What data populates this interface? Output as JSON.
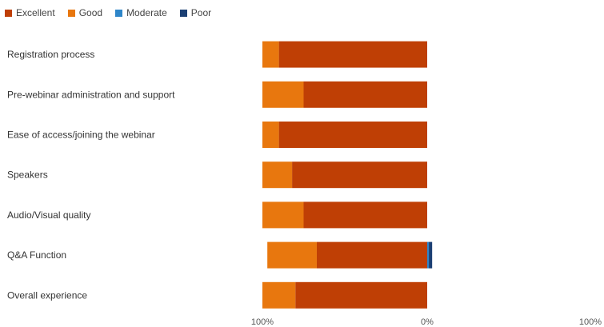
{
  "legend": [
    {
      "label": "Excellent",
      "color": "#BF3F05"
    },
    {
      "label": "Good",
      "color": "#E8770E"
    },
    {
      "label": "Moderate",
      "color": "#2E86C9"
    },
    {
      "label": "Poor",
      "color": "#1B3F73"
    }
  ],
  "chart_data": {
    "type": "bar",
    "orientation": "horizontal",
    "stacked": true,
    "diverging": true,
    "categories": [
      "Registration process",
      "Pre-webinar administration and support",
      "Ease of access/joining the webinar",
      "Speakers",
      "Audio/Visual quality",
      "Q&A Function",
      "Overall experience"
    ],
    "series": [
      {
        "name": "Excellent",
        "color": "#BF3F05",
        "values": [
          90,
          75,
          90,
          82,
          75,
          67,
          80
        ]
      },
      {
        "name": "Good",
        "color": "#E8770E",
        "values": [
          10,
          25,
          10,
          18,
          25,
          30,
          20
        ]
      },
      {
        "name": "Moderate",
        "color": "#2E86C9",
        "values": [
          0,
          0,
          0,
          0,
          0,
          1,
          0
        ]
      },
      {
        "name": "Poor",
        "color": "#1B3F73",
        "values": [
          0,
          0,
          0,
          0,
          0,
          2,
          0
        ]
      }
    ],
    "x_ticks": [
      "100%",
      "0%",
      "100%"
    ],
    "xlim": [
      -100,
      100
    ],
    "legend_position": "top-left",
    "grid": false
  }
}
